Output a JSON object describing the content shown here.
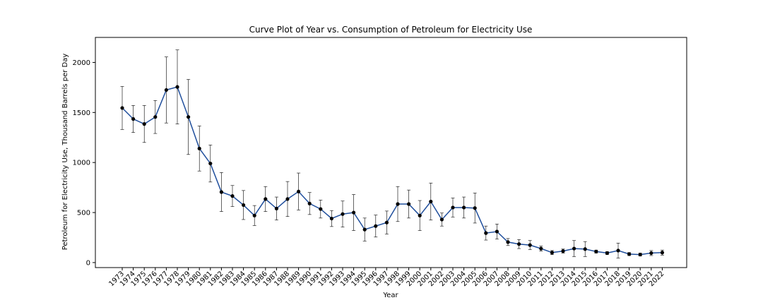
{
  "chart_data": {
    "type": "line",
    "title": "Curve Plot of Year vs. Consumption of Petroleum for Electricity Use",
    "xlabel": "Year",
    "ylabel": "Petroleum for Electricity Use, Thousand Barrels per Day",
    "ylim": [
      -50,
      2250
    ],
    "yticks": [
      0,
      500,
      1000,
      1500,
      2000
    ],
    "grid": false,
    "colors": {
      "line": "#1f4e9c",
      "marker": "#000000",
      "errorbar": "#000000",
      "axes": "#000000"
    },
    "categories": [
      "1973",
      "1974",
      "1975",
      "1976",
      "1977",
      "1978",
      "1979",
      "1980",
      "1981",
      "1982",
      "1983",
      "1984",
      "1985",
      "1986",
      "1987",
      "1988",
      "1989",
      "1990",
      "1991",
      "1992",
      "1993",
      "1994",
      "1995",
      "1996",
      "1997",
      "1998",
      "1999",
      "2000",
      "2001",
      "2002",
      "2003",
      "2004",
      "2005",
      "2006",
      "2007",
      "2008",
      "2009",
      "2010",
      "2011",
      "2012",
      "2013",
      "2014",
      "2015",
      "2016",
      "2017",
      "2018",
      "2019",
      "2020",
      "2021",
      "2022"
    ],
    "series": [
      {
        "values": [
          1545,
          1435,
          1385,
          1455,
          1725,
          1755,
          1455,
          1140,
          990,
          705,
          665,
          575,
          470,
          635,
          540,
          635,
          710,
          590,
          535,
          440,
          485,
          500,
          330,
          365,
          400,
          585,
          585,
          470,
          610,
          430,
          550,
          550,
          545,
          295,
          310,
          205,
          185,
          175,
          140,
          100,
          115,
          140,
          135,
          110,
          95,
          120,
          85,
          80,
          95,
          100
        ],
        "errors": [
          215,
          135,
          185,
          165,
          330,
          370,
          375,
          225,
          185,
          195,
          105,
          145,
          100,
          125,
          115,
          175,
          185,
          110,
          90,
          80,
          130,
          180,
          115,
          110,
          115,
          175,
          140,
          150,
          185,
          65,
          95,
          105,
          150,
          70,
          75,
          35,
          45,
          45,
          25,
          20,
          20,
          80,
          75,
          15,
          15,
          75,
          15,
          15,
          25,
          25
        ]
      }
    ]
  }
}
